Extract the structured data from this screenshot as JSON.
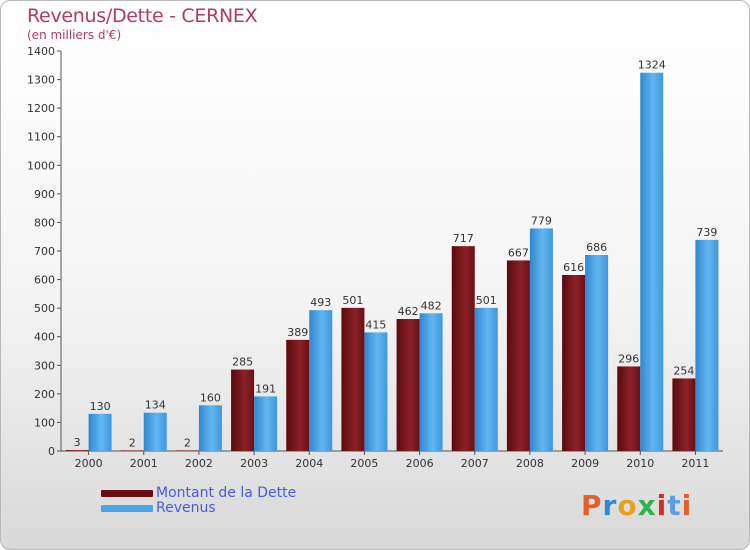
{
  "header": {
    "title": "Revenus/Dette - CERNEX",
    "subtitle": "(en milliers d'€)"
  },
  "legend": {
    "items": [
      {
        "label": "Montant de la Dette",
        "color": "#6b0f14"
      },
      {
        "label": "Revenus",
        "color": "#4aa6e6"
      }
    ]
  },
  "logo": {
    "letters": [
      "P",
      "r",
      "o",
      "x",
      "i",
      "t",
      "i"
    ],
    "colors": [
      "#e0612c",
      "#2d8bd6",
      "#e5a21a",
      "#2fb24c",
      "#d62b2b",
      "#5a9fe0",
      "#e0612c"
    ]
  },
  "chart_data": {
    "type": "bar",
    "categories": [
      "2000",
      "2001",
      "2002",
      "2003",
      "2004",
      "2005",
      "2006",
      "2007",
      "2008",
      "2009",
      "2010",
      "2011"
    ],
    "series": [
      {
        "name": "Montant de la Dette",
        "values": [
          3,
          2,
          2,
          285,
          389,
          501,
          462,
          717,
          667,
          616,
          296,
          254
        ]
      },
      {
        "name": "Revenus",
        "values": [
          130,
          134,
          160,
          191,
          493,
          415,
          482,
          501,
          779,
          686,
          1324,
          739
        ]
      }
    ],
    "title": "Revenus/Dette - CERNEX",
    "subtitle": "(en milliers d'€)",
    "ylim": [
      0,
      1400
    ],
    "yticks": [
      0,
      100,
      200,
      300,
      400,
      500,
      600,
      700,
      800,
      900,
      1000,
      1100,
      1200,
      1300,
      1400
    ],
    "grid": false,
    "legend_position": "bottom-left"
  }
}
